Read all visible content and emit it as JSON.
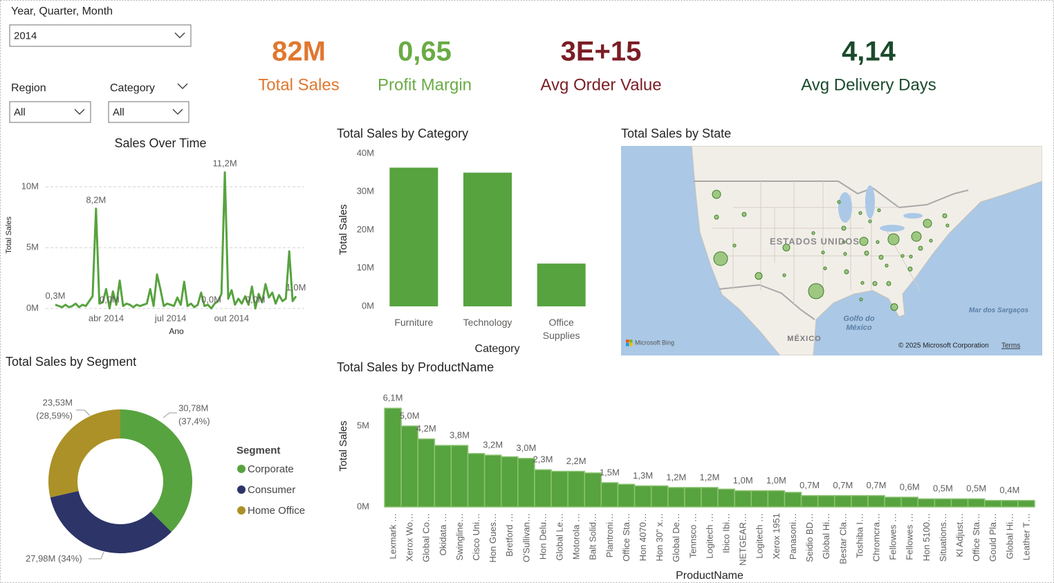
{
  "filters": [
    {
      "label": "Year, Quarter, Month",
      "value": "2014"
    },
    {
      "label": "Region",
      "value": "All"
    },
    {
      "label": "Category",
      "value": "All"
    }
  ],
  "kpis": [
    {
      "value": "82M",
      "label": "Total Sales",
      "color": "#e0772f"
    },
    {
      "value": "0,65",
      "label": "Profit Margin",
      "color": "#6aab45"
    },
    {
      "value": "3E+15",
      "label": "Avg Order Value",
      "color": "#7b1d25"
    },
    {
      "value": "4,14",
      "label": "Avg Delivery Days",
      "color": "#1b4a2c"
    }
  ],
  "chart_data": [
    {
      "type": "line",
      "title": "Sales Over Time",
      "x_label": "Ano",
      "y_label": "Total Sales",
      "color": "#57a33f",
      "grid": true,
      "categories": [
        null,
        null,
        null,
        null,
        null,
        null,
        null,
        null,
        null,
        null,
        null,
        null,
        null,
        null,
        null,
        "abr 2014",
        null,
        null,
        null,
        null,
        null,
        null,
        null,
        null,
        null,
        null,
        null,
        null,
        null,
        null,
        null,
        null,
        null,
        null,
        "jul 2014",
        null,
        null,
        null,
        null,
        null,
        null,
        null,
        null,
        null,
        null,
        null,
        null,
        null,
        null,
        null,
        null,
        null,
        "out 2014",
        null,
        null,
        null,
        null,
        null,
        null,
        null,
        null,
        null,
        null,
        null,
        null,
        null,
        null,
        null,
        null,
        null,
        null,
        null
      ],
      "values": [
        0.3,
        0.2,
        0.1,
        0.3,
        0.1,
        0.2,
        0.4,
        0.1,
        0.3,
        0.2,
        0.6,
        1.0,
        8.2,
        0.4,
        0.5,
        1.6,
        0.0,
        1.4,
        0.3,
        2.3,
        0.2,
        0.4,
        0.3,
        0.1,
        0.3,
        0.2,
        0.3,
        0.4,
        1.6,
        0.2,
        2.8,
        1.6,
        0.2,
        0.4,
        0.3,
        0.2,
        0.9,
        0.3,
        2.2,
        0.2,
        0.4,
        0.1,
        0.3,
        1.3,
        0.2,
        0.3,
        0.0,
        0.4,
        0.6,
        1.2,
        11.2,
        0.8,
        1.5,
        0.3,
        0.8,
        0.4,
        1.0,
        0.3,
        1.8,
        0.0,
        1.2,
        0.5,
        2.0,
        0.9,
        1.3,
        0.4,
        1.1,
        0.6,
        0.8,
        4.7,
        0.6,
        1.0
      ],
      "value_labels": [
        "0,3M",
        null,
        null,
        null,
        null,
        null,
        null,
        null,
        null,
        null,
        null,
        null,
        "8,2M",
        null,
        null,
        null,
        "0,0M",
        null,
        null,
        null,
        null,
        null,
        null,
        null,
        null,
        null,
        null,
        null,
        null,
        null,
        null,
        null,
        null,
        null,
        null,
        null,
        null,
        null,
        null,
        null,
        null,
        null,
        null,
        null,
        null,
        null,
        "0,0M",
        null,
        null,
        null,
        "11,2M",
        null,
        null,
        null,
        null,
        null,
        null,
        null,
        null,
        "0,0M",
        null,
        null,
        null,
        null,
        null,
        null,
        null,
        null,
        null,
        null,
        null,
        "1,0M"
      ],
      "ylim": [
        0,
        12
      ],
      "yticks": [
        {
          "value": 0,
          "label": "0M"
        },
        {
          "value": 5,
          "label": "5M"
        },
        {
          "value": 10,
          "label": "10M"
        }
      ]
    },
    {
      "type": "bar",
      "title": "Total Sales by Category",
      "x_label": "Category",
      "y_label": "Total Sales",
      "color": "#57a33f",
      "grid": false,
      "categories": [
        "Furniture",
        "Technology",
        "Office Supplies"
      ],
      "values": [
        36.3,
        35.0,
        11.2
      ],
      "ylim": [
        0,
        40
      ],
      "yticks": [
        {
          "value": 0,
          "label": "0M"
        },
        {
          "value": 10,
          "label": "10M"
        },
        {
          "value": 20,
          "label": "20M"
        },
        {
          "value": 30,
          "label": "30M"
        },
        {
          "value": 40,
          "label": "40M"
        }
      ]
    },
    {
      "type": "map",
      "title": "Total Sales by State",
      "color": "#8fc16f",
      "values": [
        3.3,
        0.8,
        0.8,
        9.2,
        0.4,
        2.3,
        2.3,
        0.4,
        11.1,
        0.4,
        0.4,
        0.4,
        0.4,
        0.4,
        0.4,
        0.8,
        3.3,
        0.4,
        5.9,
        4.5,
        3.3,
        0.8,
        0.4,
        0.4,
        0.8,
        0.4,
        0.4,
        0.8,
        0.8,
        0.4,
        0.4,
        0.4,
        0.8,
        0.4,
        0.8,
        0.8,
        0.8,
        0.4,
        2.3,
        0.4
      ],
      "country_labels": [
        "ESTADOS UNIDOS",
        "MÉXICO"
      ],
      "water_labels": [
        "Golfo do México",
        "Mar dos Sargaços"
      ],
      "provider": "Microsoft Bing",
      "attribution": "© 2025 Microsoft Corporation",
      "terms": "Terms"
    },
    {
      "type": "donut",
      "title": "Total Sales by Segment",
      "legend_title": "Segment",
      "categories": [
        "Corporate",
        "Consumer",
        "Home Office"
      ],
      "colors": [
        "#57a33f",
        "#2c3468",
        "#ab9127"
      ],
      "values": [
        30.78,
        27.98,
        23.53
      ],
      "value_labels": [
        "30,78M",
        "27,98M",
        "23,53M"
      ],
      "percents": [
        37.4,
        34,
        28.59
      ],
      "percent_labels": [
        "(37,4%)",
        "(34%)",
        "(28,59%)"
      ]
    },
    {
      "type": "bar",
      "title": "Total Sales by ProductName",
      "x_label": "ProductName",
      "y_label": "Total Sales",
      "color": "#57a33f",
      "grid": false,
      "categories": [
        "Lexmark …",
        "Xerox Wo…",
        "Global Co…",
        "Okidata …",
        "Swingline…",
        "Cisco Uni…",
        "Hon Gues…",
        "Bretford …",
        "O'Sullivan…",
        "Hon Delu…",
        "Global Le…",
        "Motorola …",
        "Balt Solid…",
        "Plantroni…",
        "Office Sta…",
        "Hon 4070…",
        "Hon 30\" x…",
        "Global De…",
        "Tennsco …",
        "Logitech …",
        "Ibico Ibi…",
        "NETGEAR…",
        "Logitech …",
        "Xerox 1951",
        "Panasoni…",
        "Seidio BD…",
        "Global Hi…",
        "Bestar Cla…",
        "Toshiba I…",
        "Chromcra…",
        "Fellowes …",
        "Fellowes …",
        "Hon 5100…",
        "Situations…",
        "Kl Adjust…",
        "Office Sta…",
        "Gould Pla…",
        "Global Hi…",
        "Leather T…"
      ],
      "values": [
        6.1,
        5.0,
        4.2,
        3.8,
        3.8,
        3.3,
        3.2,
        3.1,
        3.0,
        2.3,
        2.2,
        2.2,
        2.1,
        1.5,
        1.4,
        1.3,
        1.3,
        1.2,
        1.2,
        1.2,
        1.1,
        1.0,
        1.0,
        1.0,
        0.9,
        0.7,
        0.7,
        0.7,
        0.7,
        0.7,
        0.6,
        0.6,
        0.5,
        0.5,
        0.5,
        0.5,
        0.4,
        0.4,
        0.4
      ],
      "value_labels": [
        "6,1M",
        "5,0M",
        "4,2M",
        null,
        "3,8M",
        null,
        "3,2M",
        null,
        "3,0M",
        "2,3M",
        null,
        "2,2M",
        null,
        "1,5M",
        null,
        "1,3M",
        null,
        "1,2M",
        null,
        "1,2M",
        null,
        "1,0M",
        null,
        "1,0M",
        null,
        "0,7M",
        null,
        "0,7M",
        null,
        "0,7M",
        null,
        "0,6M",
        null,
        "0,5M",
        null,
        "0,5M",
        null,
        "0,4M",
        null
      ],
      "ylim": [
        0,
        6.5
      ],
      "yticks": [
        {
          "value": 0,
          "label": "0M"
        },
        {
          "value": 5,
          "label": "5M"
        }
      ]
    }
  ]
}
